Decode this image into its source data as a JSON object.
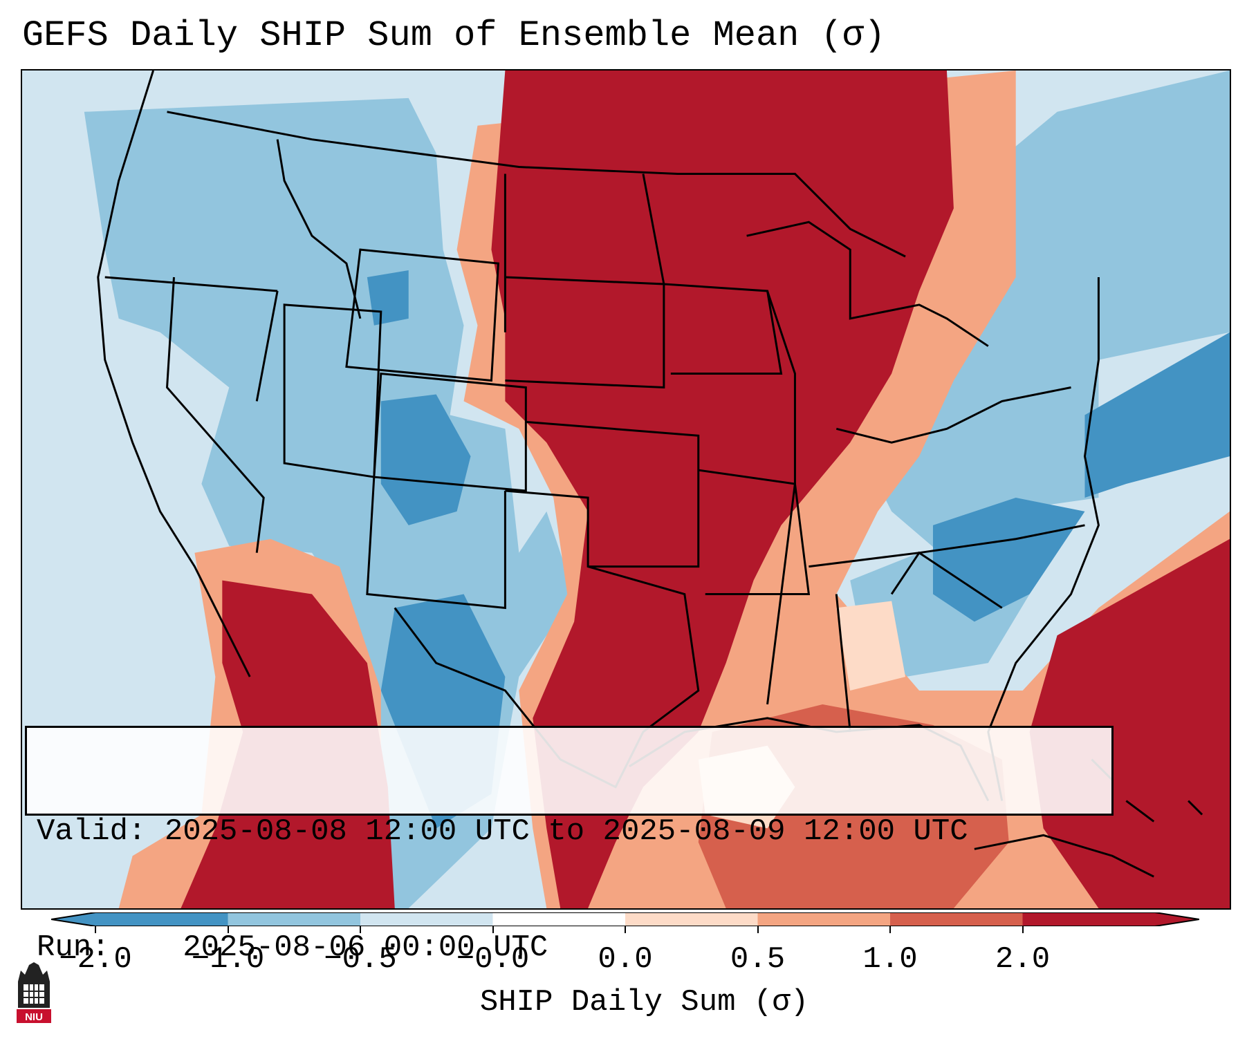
{
  "title": "GEFS Daily SHIP Sum of Ensemble Mean (σ)",
  "info": {
    "valid_label": "Valid:",
    "valid_value": "2025-08-08 12:00 UTC to 2025-08-09 12:00 UTC",
    "run_label": "Run:",
    "run_value": "2025-08-06 00:00 UTC"
  },
  "colorbar": {
    "label": "SHIP Daily Sum (σ)",
    "ticks": [
      "−2.0",
      "−1.0",
      "−0.5",
      "−0.0",
      "0.0",
      "0.5",
      "1.0",
      "2.0"
    ],
    "colors": [
      "#4393c3",
      "#92c5de",
      "#d1e5f0",
      "#ffffff",
      "#fddbc7",
      "#f4a582",
      "#d6604d",
      "#b2182b"
    ],
    "extend": "both"
  },
  "logo": {
    "text": "NIU",
    "color": "#c8102e"
  },
  "legend_colors": {
    "strong_negative": "#4393c3",
    "negative": "#92c5de",
    "weak_negative": "#d1e5f0",
    "weak_positive": "#fddbc7",
    "positive": "#f4a582",
    "moderate_positive": "#d6604d",
    "strong_positive": "#b2182b"
  }
}
